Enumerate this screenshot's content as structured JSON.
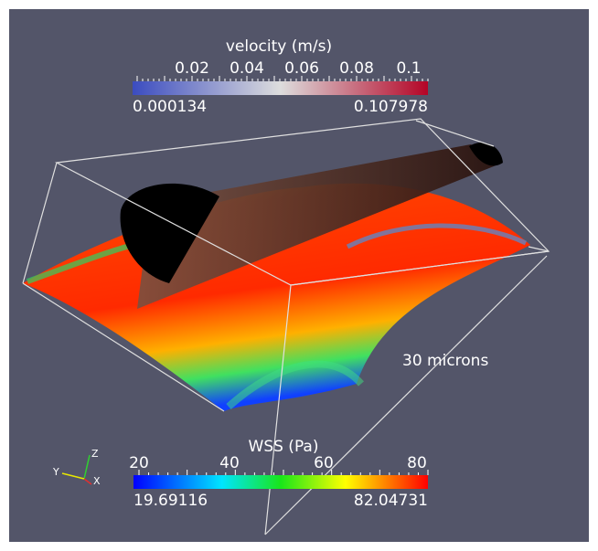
{
  "velocity_bar": {
    "title": "velocity (m/s)",
    "ticks": [
      "0.02",
      "0.04",
      "0.06",
      "0.08",
      "0.1"
    ],
    "min": "0.000134",
    "max": "0.107978"
  },
  "wss_bar": {
    "title": "WSS (Pa)",
    "ticks": [
      "20",
      "40",
      "60",
      "80"
    ],
    "min": "19.69116",
    "max": "82.04731"
  },
  "annotation": "30 microns",
  "axes": {
    "x": "X",
    "y": "Y",
    "z": "Z"
  }
}
